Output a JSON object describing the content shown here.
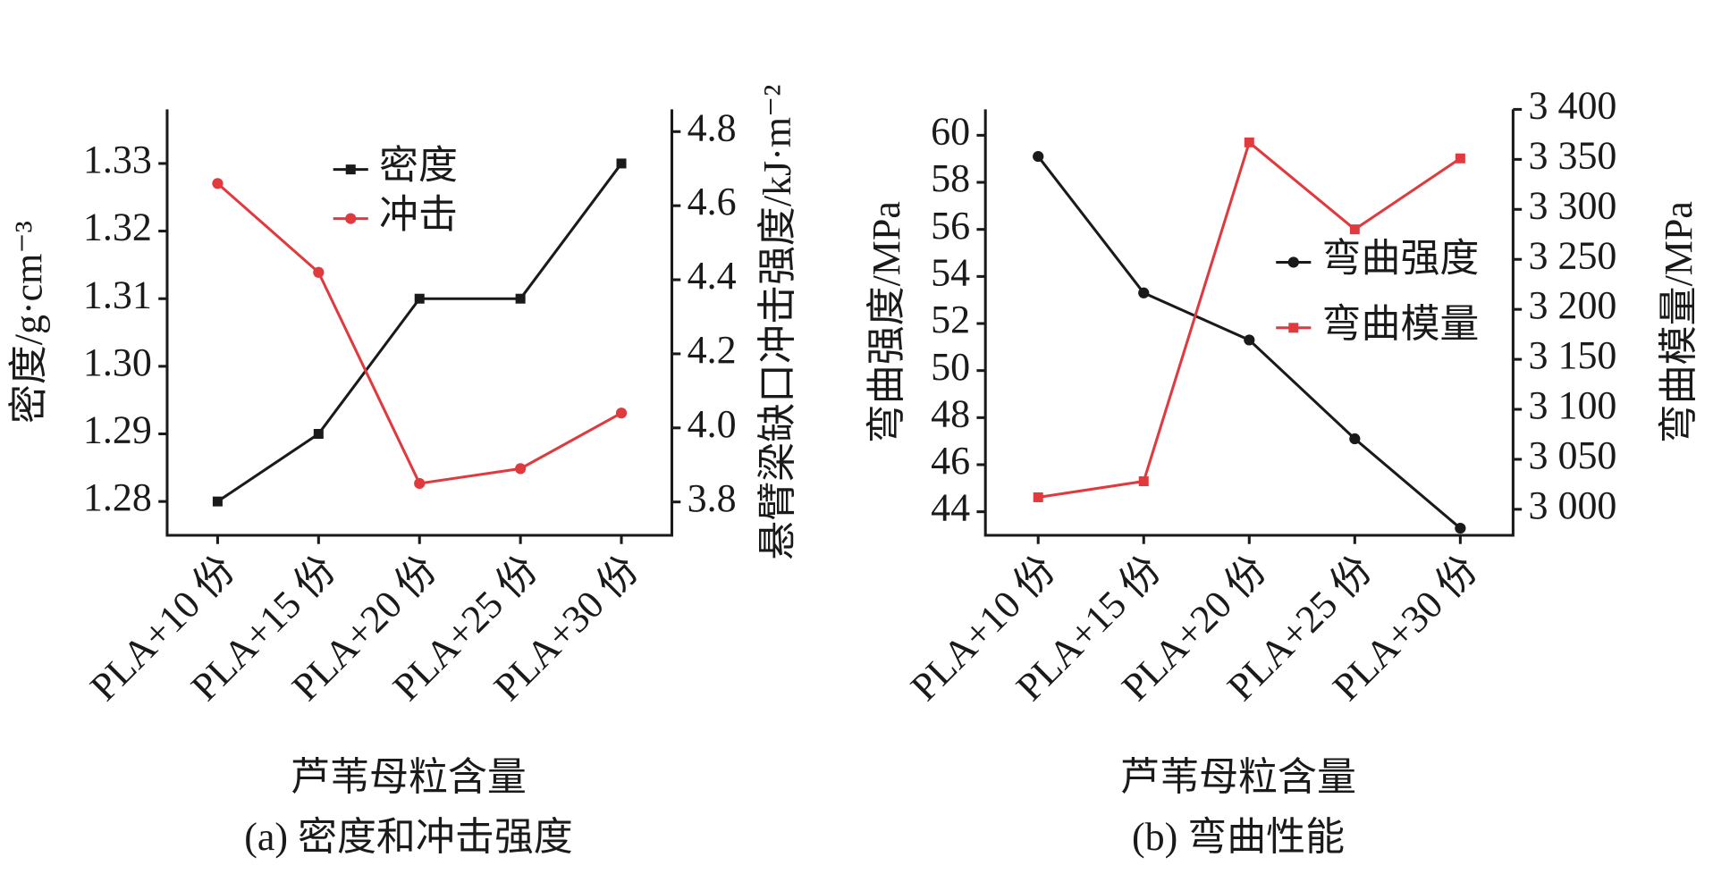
{
  "chart_data": [
    {
      "type": "line",
      "caption": "(a) 密度和冲击强度",
      "x_label": "芦苇母粒含量",
      "y_label": "密度/g·cm⁻³",
      "y2_label": "悬臂梁缺口冲击强度/kJ·m⁻²",
      "categories": [
        "PLA+10 份",
        "PLA+15 份",
        "PLA+20 份",
        "PLA+25 份",
        "PLA+30 份"
      ],
      "ylim": [
        1.275,
        1.338
      ],
      "yticks": [
        1.28,
        1.29,
        {
          "value": 1.3,
          "label": "1.30"
        },
        1.31,
        1.32,
        1.33
      ],
      "y2lim": [
        3.71,
        4.86
      ],
      "y2ticks": [
        3.8,
        {
          "value": 4.0,
          "label": "4.0"
        },
        4.2,
        4.4,
        4.6,
        4.8
      ],
      "legend": "upper center",
      "series": [
        {
          "name": "密度",
          "color": "#1a1a1a",
          "marker": "square",
          "values": [
            1.28,
            1.29,
            1.31,
            1.31,
            1.33
          ]
        },
        {
          "name": "冲击",
          "color": "#e0393e",
          "marker": "circle",
          "axis": "y2",
          "values": [
            4.66,
            4.42,
            3.85,
            3.89,
            4.04
          ]
        }
      ]
    },
    {
      "type": "line",
      "caption": "(b) 弯曲性能",
      "x_label": "芦苇母粒含量",
      "y_label": "弯曲强度/MPa",
      "y2_label": "弯曲模量/MPa",
      "categories": [
        "PLA+10 份",
        "PLA+15 份",
        "PLA+20 份",
        "PLA+25 份",
        "PLA+30 份"
      ],
      "ylim": [
        43.0,
        61.1
      ],
      "yticks": [
        44,
        46,
        48,
        50,
        52,
        54,
        56,
        58,
        60
      ],
      "y2lim": [
        2974,
        3400
      ],
      "y2ticks": [
        {
          "value": 3000,
          "label": "3 000"
        },
        {
          "value": 3050,
          "label": "3 050"
        },
        {
          "value": 3100,
          "label": "3 100"
        },
        {
          "value": 3150,
          "label": "3 150"
        },
        {
          "value": 3200,
          "label": "3 200"
        },
        {
          "value": 3250,
          "label": "3 250"
        },
        {
          "value": 3300,
          "label": "3 300"
        },
        {
          "value": 3350,
          "label": "3 350"
        },
        {
          "value": 3400,
          "label": "3 400"
        }
      ],
      "legend": "center right",
      "series": [
        {
          "name": "弯曲强度",
          "color": "#1a1a1a",
          "marker": "circle",
          "values": [
            59.1,
            53.3,
            51.3,
            47.1,
            43.3
          ]
        },
        {
          "name": "弯曲模量",
          "color": "#e0393e",
          "marker": "square",
          "axis": "y2",
          "values": [
            3012,
            3028,
            3367,
            3280,
            3351
          ]
        }
      ]
    }
  ]
}
